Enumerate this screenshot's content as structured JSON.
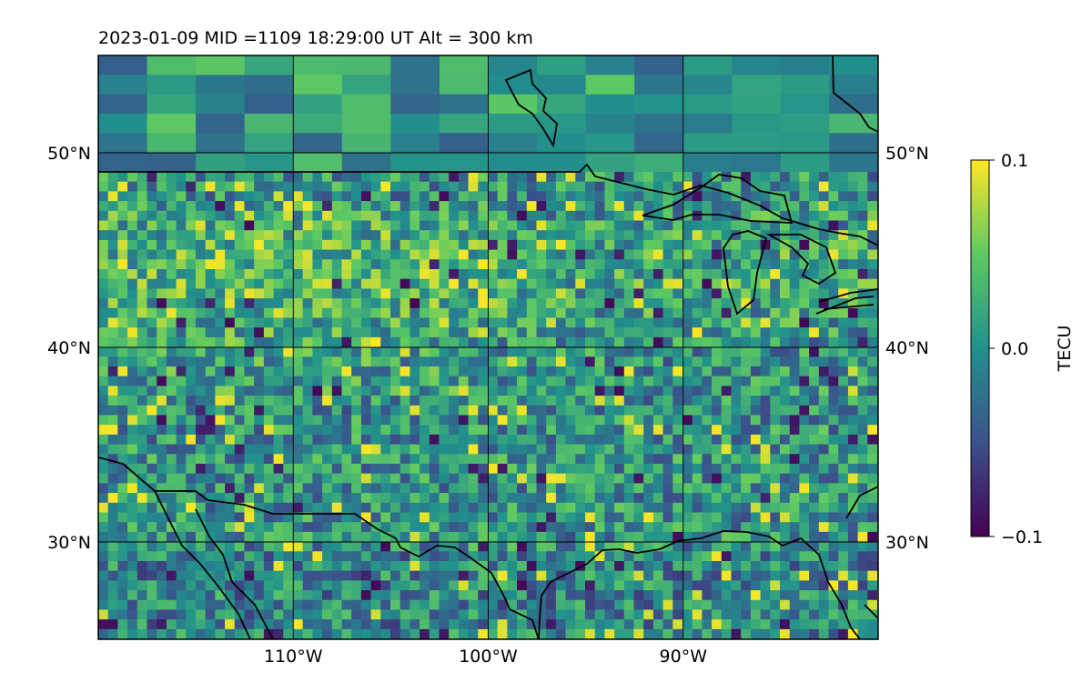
{
  "title": "2023-01-09  MID =1109    18:29:00  UT  Alt = 300 km",
  "map": {
    "lon_range": [
      -120,
      -80
    ],
    "lat_range": [
      25,
      55
    ],
    "grid": true,
    "lon_ticks": [
      {
        "value": -110,
        "label": "110°W"
      },
      {
        "value": -100,
        "label": "100°W"
      },
      {
        "value": -90,
        "label": "90°W"
      }
    ],
    "lat_ticks_left": [
      {
        "value": 50,
        "label": "50°N"
      },
      {
        "value": 40,
        "label": "40°N"
      },
      {
        "value": 30,
        "label": "30°N"
      }
    ],
    "lat_ticks_right": [
      {
        "value": 50,
        "label": "50°N"
      },
      {
        "value": 40,
        "label": "40°N"
      },
      {
        "value": 30,
        "label": "30°N"
      }
    ],
    "field": "Vertical TEC perturbation (blocky, heterogeneous; stronger positive band ~41–47°N, 95–120°W)",
    "coastlines": true,
    "borders": true
  },
  "colorbar": {
    "label": "TECU",
    "min": -0.1,
    "max": 0.1,
    "ticks": [
      {
        "value": 0.1,
        "label": "0.1"
      },
      {
        "value": 0.0,
        "label": "0.0"
      },
      {
        "value": -0.1,
        "label": "−0.1"
      }
    ],
    "colormap": "viridis",
    "colors": [
      "#440154",
      "#3b528b",
      "#21918c",
      "#5ec962",
      "#fde725"
    ]
  }
}
